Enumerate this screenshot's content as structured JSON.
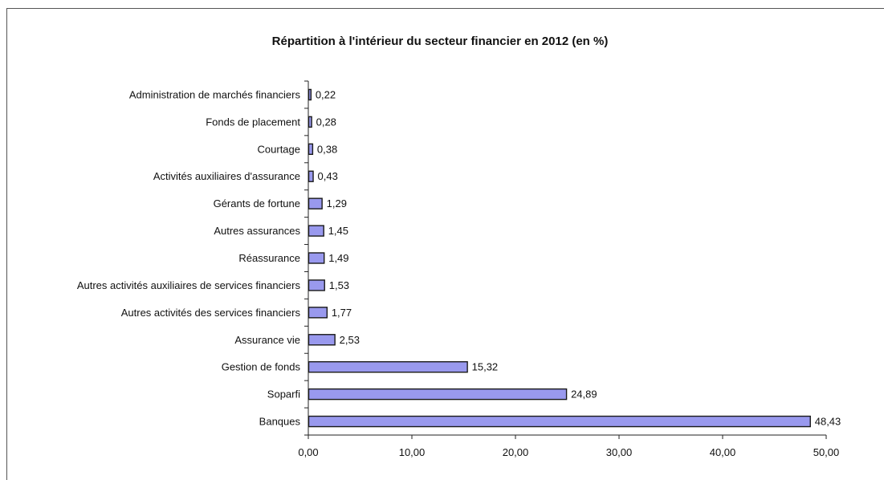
{
  "chart_data": {
    "type": "bar",
    "orientation": "horizontal",
    "title": "Répartition à l'intérieur du secteur financier en 2012 (en %)",
    "categories": [
      "Administration de marchés financiers",
      "Fonds de placement",
      "Courtage",
      "Activités auxiliaires d'assurance",
      "Gérants de fortune",
      "Autres assurances",
      "Réassurance",
      "Autres activités auxiliaires de services financiers",
      "Autres activités des services financiers",
      "Assurance vie",
      "Gestion de fonds",
      "Soparfi",
      "Banques"
    ],
    "values": [
      0.22,
      0.28,
      0.38,
      0.43,
      1.29,
      1.45,
      1.49,
      1.53,
      1.77,
      2.53,
      15.32,
      24.89,
      48.43
    ],
    "value_labels": [
      "0,22",
      "0,28",
      "0,38",
      "0,43",
      "1,29",
      "1,45",
      "1,49",
      "1,53",
      "1,77",
      "2,53",
      "15,32",
      "24,89",
      "48,43"
    ],
    "xlim": [
      0,
      50
    ],
    "xticks": [
      0,
      10,
      20,
      30,
      40,
      50
    ],
    "xtick_labels": [
      "0,00",
      "10,00",
      "20,00",
      "30,00",
      "40,00",
      "50,00"
    ],
    "xlabel": "",
    "ylabel": "",
    "grid": false,
    "legend": "none",
    "bar_color": "#9999ee",
    "bar_edge_color": "#1a1a1a"
  }
}
